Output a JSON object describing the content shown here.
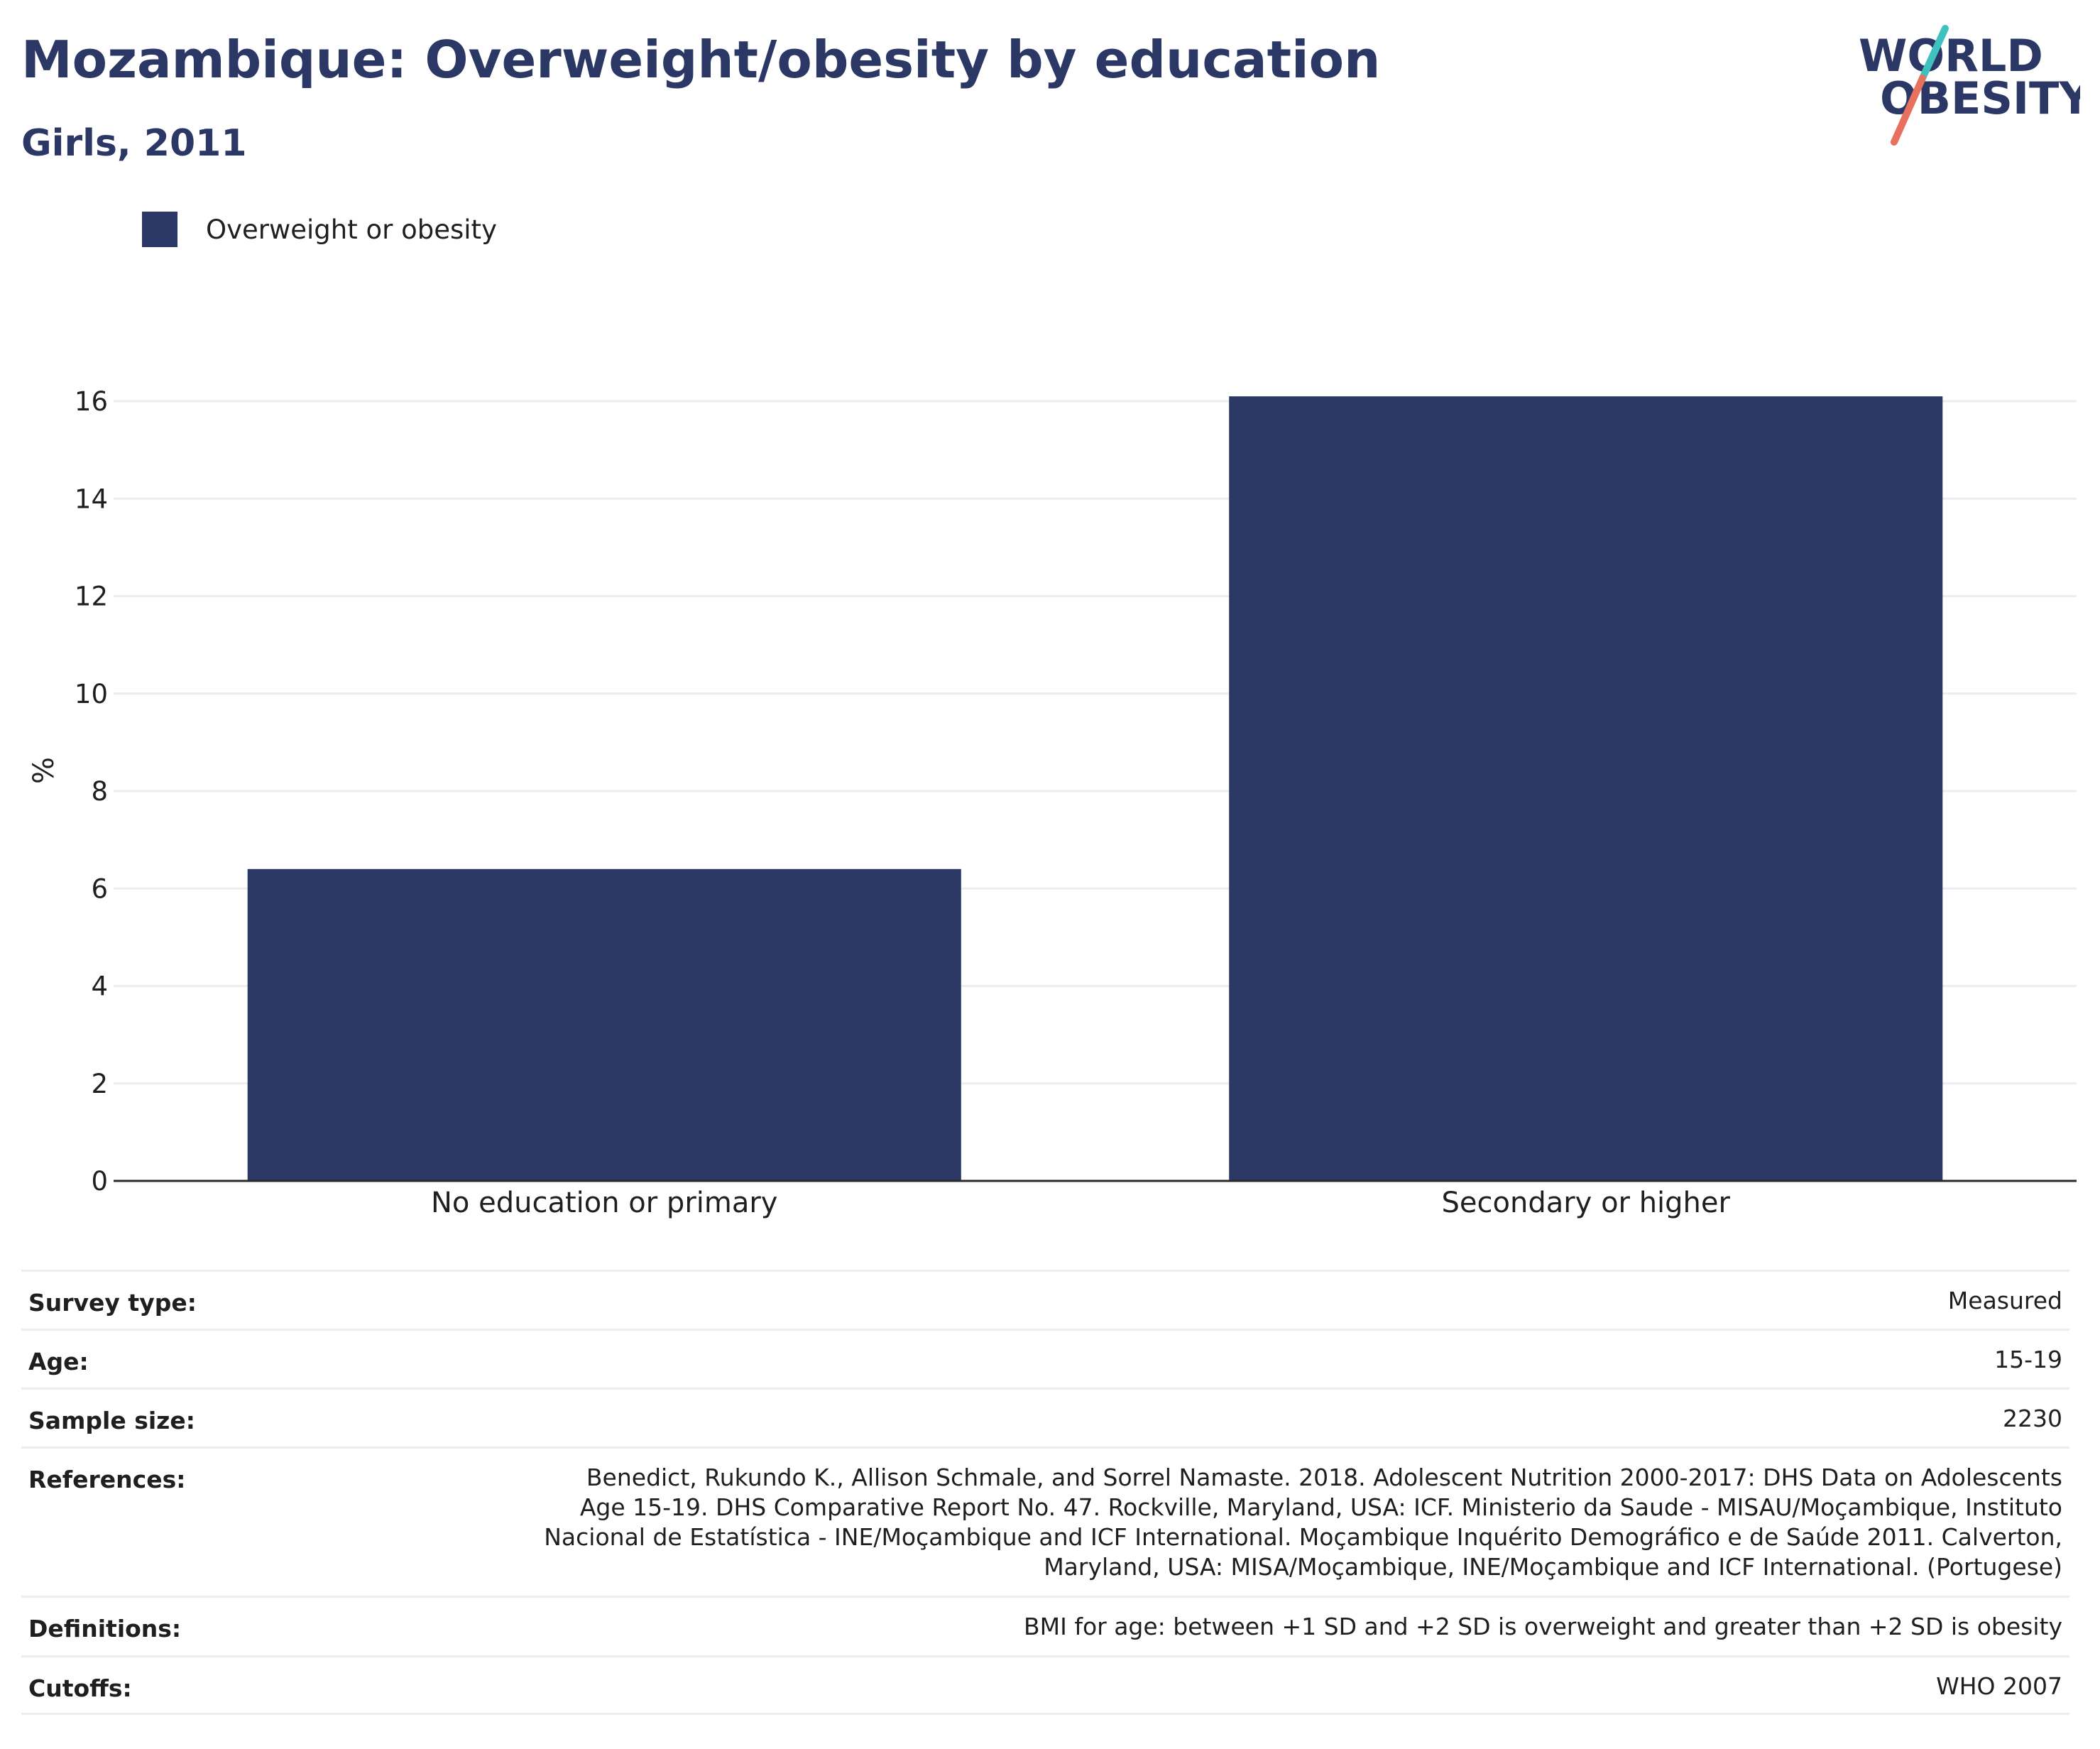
{
  "header": {
    "title": "Mozambique: Overweight/obesity by education",
    "subtitle": "Girls, 2011"
  },
  "logo": {
    "line1": "WORLD",
    "line2": "OBESITY"
  },
  "legend": {
    "label": "Overweight or obesity"
  },
  "colors": {
    "bar": "#2b3764",
    "title": "#2b3764",
    "logo_teal": "#3fc1c0",
    "logo_coral": "#e8705f",
    "grid": "#eaeef1"
  },
  "chart_data": {
    "type": "bar",
    "categories": [
      "No education or primary",
      "Secondary or higher"
    ],
    "series": [
      {
        "name": "Overweight or obesity",
        "values": [
          6.4,
          16.1
        ]
      }
    ],
    "ylabel": "%",
    "xlabel": "",
    "ylim": [
      0,
      16
    ],
    "yticks": [
      0,
      2,
      4,
      6,
      8,
      10,
      12,
      14,
      16
    ],
    "grid": true,
    "legend_position": "top-left"
  },
  "meta": {
    "survey_type_label": "Survey type:",
    "survey_type_value": "Measured",
    "age_label": "Age:",
    "age_value": "15-19",
    "sample_label": "Sample size:",
    "sample_value": "2230",
    "references_label": "References:",
    "references_value": "Benedict, Rukundo K., Allison Schmale, and Sorrel Namaste. 2018. Adolescent Nutrition 2000-2017: DHS Data on Adolescents Age 15-19. DHS Comparative Report No. 47. Rockville, Maryland, USA: ICF. Ministerio da Saude - MISAU/Moçambique, Instituto Nacional de Estatística - INE/Moçambique and ICF International. Moçambique Inquérito Demográfico e de Saúde 2011. Calverton, Maryland, USA: MISA/Moçambique, INE/Moçambique and ICF International. (Portugese)",
    "definitions_label": "Definitions:",
    "definitions_value": "BMI for age: between +1 SD and +2 SD is overweight and greater than +2 SD is obesity",
    "cutoffs_label": "Cutoffs:",
    "cutoffs_value": "WHO 2007"
  }
}
